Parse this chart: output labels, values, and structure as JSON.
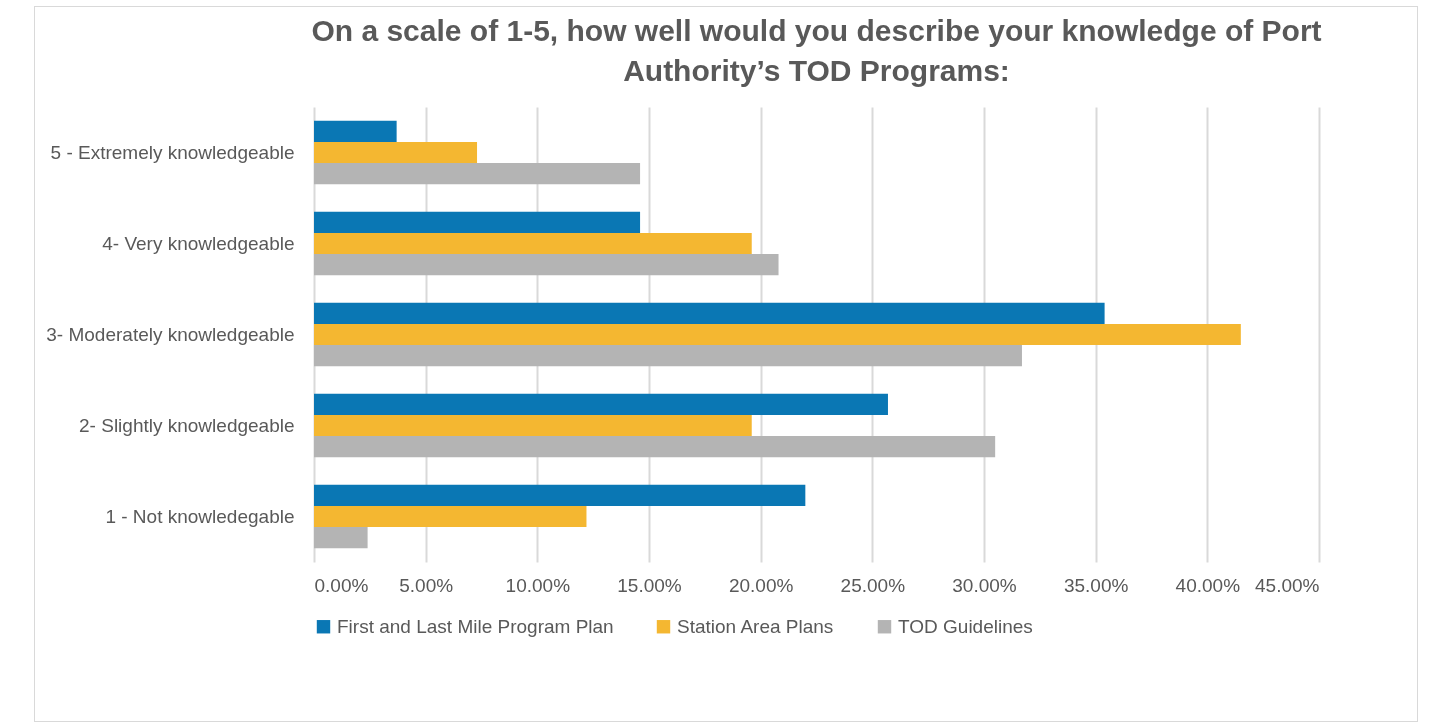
{
  "chart_data": {
    "type": "bar",
    "orientation": "horizontal",
    "title": "On a scale of 1-5, how well would you describe your knowledge of Port Authority’s TOD Programs:",
    "categories": [
      "5 - Extremely knowledgeable",
      "4- Very knowledgeable",
      "3- Moderately knowledgeable",
      "2- Slightly knowledgeable",
      "1 - Not knowledegable"
    ],
    "series": [
      {
        "name": "First and Last Mile Program Plan",
        "color": "#0a77b4",
        "values": [
          3.7,
          14.6,
          35.4,
          25.7,
          22.0
        ]
      },
      {
        "name": "Station Area Plans",
        "color": "#f4b731",
        "values": [
          7.3,
          19.6,
          41.5,
          19.6,
          12.2
        ]
      },
      {
        "name": "TOD Guidelines",
        "color": "#b4b4b4",
        "values": [
          14.6,
          20.8,
          31.7,
          30.5,
          2.4
        ]
      }
    ],
    "xlim": [
      0,
      45
    ],
    "xticks": [
      {
        "value": 0,
        "label": "0.00%"
      },
      {
        "value": 5,
        "label": "5.00%"
      },
      {
        "value": 10,
        "label": "10.00%"
      },
      {
        "value": 15,
        "label": "15.00%"
      },
      {
        "value": 20,
        "label": "20.00%"
      },
      {
        "value": 25,
        "label": "25.00%"
      },
      {
        "value": 30,
        "label": "30.00%"
      },
      {
        "value": 35,
        "label": "35.00%"
      },
      {
        "value": 40,
        "label": "40.00%"
      },
      {
        "value": 45,
        "label": "45.00%"
      }
    ],
    "grid": "x",
    "legend": "bottom"
  }
}
